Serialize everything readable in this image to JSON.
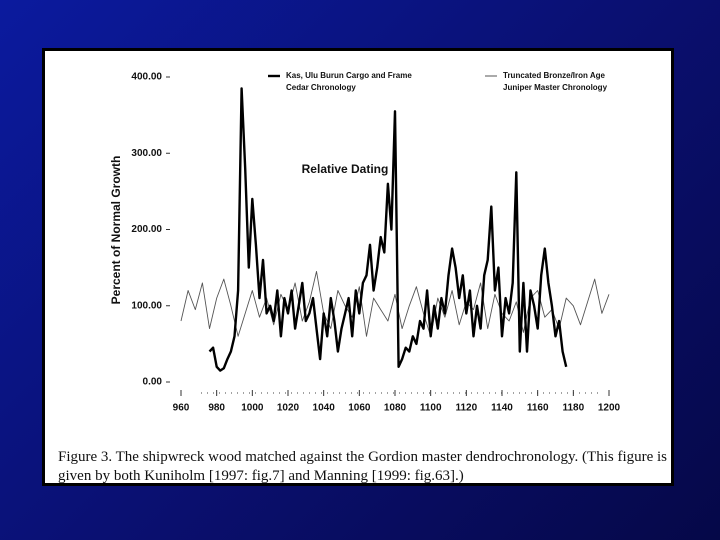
{
  "chart_data": {
    "type": "line",
    "y_label": "Percent of Normal Growth",
    "x_label": "Relative Dating",
    "caption": "Figure 3.  The shipwreck wood matched against the Gordion master dendrochronology.  (This figure is given by both Kuniholm [1997: fig.7] and Manning [1999: fig.63].)",
    "xlim": [
      960,
      1200
    ],
    "xticks": [
      960,
      980,
      1000,
      1020,
      1040,
      1060,
      1080,
      1100,
      1120,
      1140,
      1160,
      1180,
      1200
    ],
    "ylim": [
      0,
      400
    ],
    "yticks": [
      {
        "value": 0,
        "label": "0.00"
      },
      {
        "value": 100,
        "label": "100.00"
      },
      {
        "value": 200,
        "label": "200.00"
      },
      {
        "value": 300,
        "label": "300.00"
      },
      {
        "value": 400,
        "label": "400.00"
      }
    ],
    "series": [
      {
        "name": "Kas, Ulu Burun Cargo and Frame",
        "description": "Cedar Chronology",
        "color": "#000000",
        "x": [
          976,
          978,
          980,
          982,
          984,
          986,
          988,
          990,
          992,
          994,
          996,
          998,
          1000,
          1002,
          1004,
          1006,
          1008,
          1010,
          1012,
          1014,
          1016,
          1018,
          1020,
          1022,
          1024,
          1026,
          1028,
          1030,
          1032,
          1034,
          1036,
          1038,
          1040,
          1042,
          1044,
          1046,
          1048,
          1050,
          1052,
          1054,
          1056,
          1058,
          1060,
          1062,
          1064,
          1066,
          1068,
          1070,
          1072,
          1074,
          1076,
          1078,
          1080,
          1082,
          1084,
          1086,
          1088,
          1090,
          1092,
          1094,
          1096,
          1098,
          1100,
          1102,
          1104,
          1106,
          1108,
          1110,
          1112,
          1114,
          1116,
          1118,
          1120,
          1122,
          1124,
          1126,
          1128,
          1130,
          1132,
          1134,
          1136,
          1138,
          1140,
          1142,
          1144,
          1146,
          1148,
          1150,
          1152,
          1154,
          1156,
          1158,
          1160,
          1162,
          1164,
          1166,
          1168,
          1170,
          1172,
          1174,
          1176
        ],
        "values": [
          40,
          45,
          20,
          15,
          18,
          30,
          40,
          60,
          120,
          385,
          280,
          150,
          240,
          180,
          110,
          160,
          90,
          100,
          80,
          120,
          60,
          110,
          90,
          120,
          70,
          100,
          130,
          80,
          90,
          110,
          70,
          30,
          90,
          60,
          110,
          80,
          40,
          70,
          90,
          110,
          60,
          120,
          90,
          130,
          140,
          180,
          120,
          150,
          190,
          170,
          260,
          200,
          355,
          20,
          30,
          45,
          40,
          60,
          50,
          80,
          70,
          120,
          60,
          100,
          70,
          110,
          90,
          140,
          175,
          150,
          110,
          140,
          90,
          120,
          60,
          100,
          70,
          140,
          160,
          230,
          120,
          150,
          60,
          110,
          90,
          130,
          275,
          40,
          130,
          40,
          120,
          100,
          70,
          140,
          175,
          130,
          100,
          60,
          80,
          40,
          20
        ]
      },
      {
        "name": "Truncated Bronze/Iron Age",
        "description": "Juniper Master Chronology",
        "color": "#555555",
        "x": [
          960,
          964,
          968,
          972,
          976,
          980,
          984,
          988,
          992,
          996,
          1000,
          1004,
          1008,
          1012,
          1016,
          1020,
          1024,
          1028,
          1032,
          1036,
          1040,
          1044,
          1048,
          1052,
          1056,
          1060,
          1064,
          1068,
          1072,
          1076,
          1080,
          1084,
          1088,
          1092,
          1096,
          1100,
          1104,
          1108,
          1112,
          1116,
          1120,
          1124,
          1128,
          1132,
          1136,
          1140,
          1144,
          1148,
          1152,
          1156,
          1160,
          1164,
          1168,
          1172,
          1176,
          1180,
          1184,
          1188,
          1192,
          1196,
          1200
        ],
        "values": [
          80,
          120,
          95,
          130,
          70,
          110,
          135,
          100,
          60,
          90,
          120,
          85,
          110,
          75,
          115,
          95,
          130,
          80,
          105,
          145,
          90,
          70,
          120,
          100,
          85,
          125,
          60,
          110,
          95,
          80,
          115,
          70,
          100,
          125,
          90,
          60,
          110,
          85,
          120,
          75,
          105,
          95,
          130,
          70,
          115,
          90,
          80,
          105,
          65,
          110,
          120,
          85,
          95,
          70,
          110,
          100,
          75,
          105,
          135,
          90,
          115
        ]
      }
    ]
  }
}
